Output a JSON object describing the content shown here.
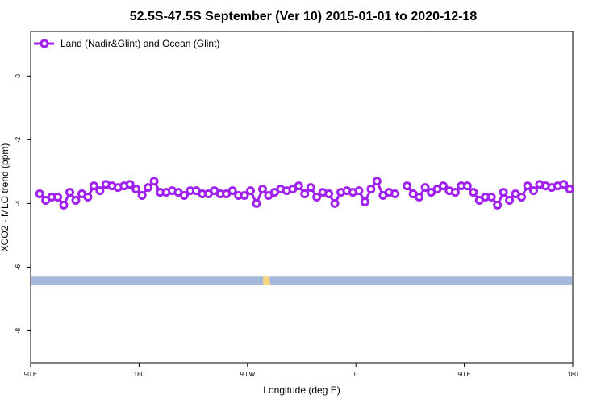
{
  "colors": {
    "series": "#a020f0",
    "ocean_band": "#a3b8dc",
    "land_patch": "#f7d57a"
  },
  "chart_data": {
    "type": "line",
    "title": "52.5S-47.5S September (Ver 10)   2015-01-01 to 2020-12-18",
    "xlabel": "Longitude (deg E)",
    "ylabel": "XCO2 - MLO trend (ppm)",
    "xlim": [
      90,
      540
    ],
    "ylim": [
      -9.0,
      1.4
    ],
    "grid": false,
    "legend_position": "top-left",
    "x_ticks": [
      {
        "value": 90,
        "label": "90 E"
      },
      {
        "value": 180,
        "label": "180"
      },
      {
        "value": 270,
        "label": "90 W"
      },
      {
        "value": 360,
        "label": "0"
      },
      {
        "value": 450,
        "label": "90 E"
      },
      {
        "value": 540,
        "label": "180"
      }
    ],
    "y_ticks": [
      {
        "value": 0,
        "label": "0"
      },
      {
        "value": -2,
        "label": "-2"
      },
      {
        "value": -4,
        "label": "-4"
      },
      {
        "value": -6,
        "label": "-6"
      },
      {
        "value": -8,
        "label": "-8"
      }
    ],
    "series": [
      {
        "name": "Land (Nadir&Glint) and Ocean (Glint)",
        "x": [
          97.5,
          102.5,
          107.5,
          112.5,
          117.5,
          122.5,
          127.5,
          132.5,
          137.5,
          142.5,
          147.5,
          152.5,
          157.5,
          162.5,
          167.5,
          172.5,
          177.5,
          182.5,
          187.5,
          192.5,
          197.5,
          202.5,
          207.5,
          212.5,
          217.5,
          222.5,
          227.5,
          232.5,
          237.5,
          242.5,
          247.5,
          252.5,
          257.5,
          262.5,
          267.5,
          272.5,
          277.5,
          282.5,
          287.5,
          292.5,
          297.5,
          302.5,
          307.5,
          312.5,
          317.5,
          322.5,
          327.5,
          332.5,
          337.5,
          342.5,
          347.5,
          352.5,
          357.5,
          362.5,
          367.5,
          372.5,
          377.5,
          382.5,
          387.5,
          392.5,
          null,
          402.5,
          407.5,
          412.5,
          417.5,
          422.5,
          427.5,
          432.5,
          437.5,
          442.5,
          447.5,
          452.5,
          457.5,
          462.5,
          467.5,
          472.5,
          477.5,
          482.5,
          487.5,
          492.5,
          497.5,
          502.5,
          507.5,
          512.5,
          517.5,
          522.5,
          527.5,
          532.5,
          537.5
        ],
        "y": [
          -3.7,
          -3.9,
          -3.8,
          -3.8,
          -4.05,
          -3.65,
          -3.9,
          -3.7,
          -3.8,
          -3.45,
          -3.6,
          -3.4,
          -3.45,
          -3.5,
          -3.45,
          -3.4,
          -3.55,
          -3.75,
          -3.5,
          -3.3,
          -3.65,
          -3.65,
          -3.6,
          -3.65,
          -3.75,
          -3.6,
          -3.6,
          -3.7,
          -3.7,
          -3.6,
          -3.7,
          -3.7,
          -3.6,
          -3.75,
          -3.75,
          -3.6,
          -4.0,
          -3.55,
          -3.75,
          -3.65,
          -3.55,
          -3.6,
          -3.55,
          -3.45,
          -3.7,
          -3.5,
          -3.8,
          -3.65,
          -3.7,
          -4.0,
          -3.65,
          -3.6,
          -3.65,
          -3.6,
          -3.95,
          -3.55,
          -3.3,
          -3.75,
          -3.65,
          -3.7,
          null,
          -3.45,
          -3.7,
          -3.8,
          -3.5,
          -3.65,
          -3.55,
          -3.45,
          -3.6,
          -3.65,
          -3.45,
          -3.45,
          -3.65,
          -3.9,
          -3.8,
          -3.8,
          -4.05,
          -3.65,
          -3.9,
          -3.7,
          -3.8,
          -3.45,
          -3.6,
          -3.4,
          -3.45,
          -3.5,
          -3.45,
          -3.4,
          -3.55
        ]
      }
    ],
    "land_ocean_band": {
      "y_range": [
        -6.3,
        -6.55
      ]
    }
  }
}
